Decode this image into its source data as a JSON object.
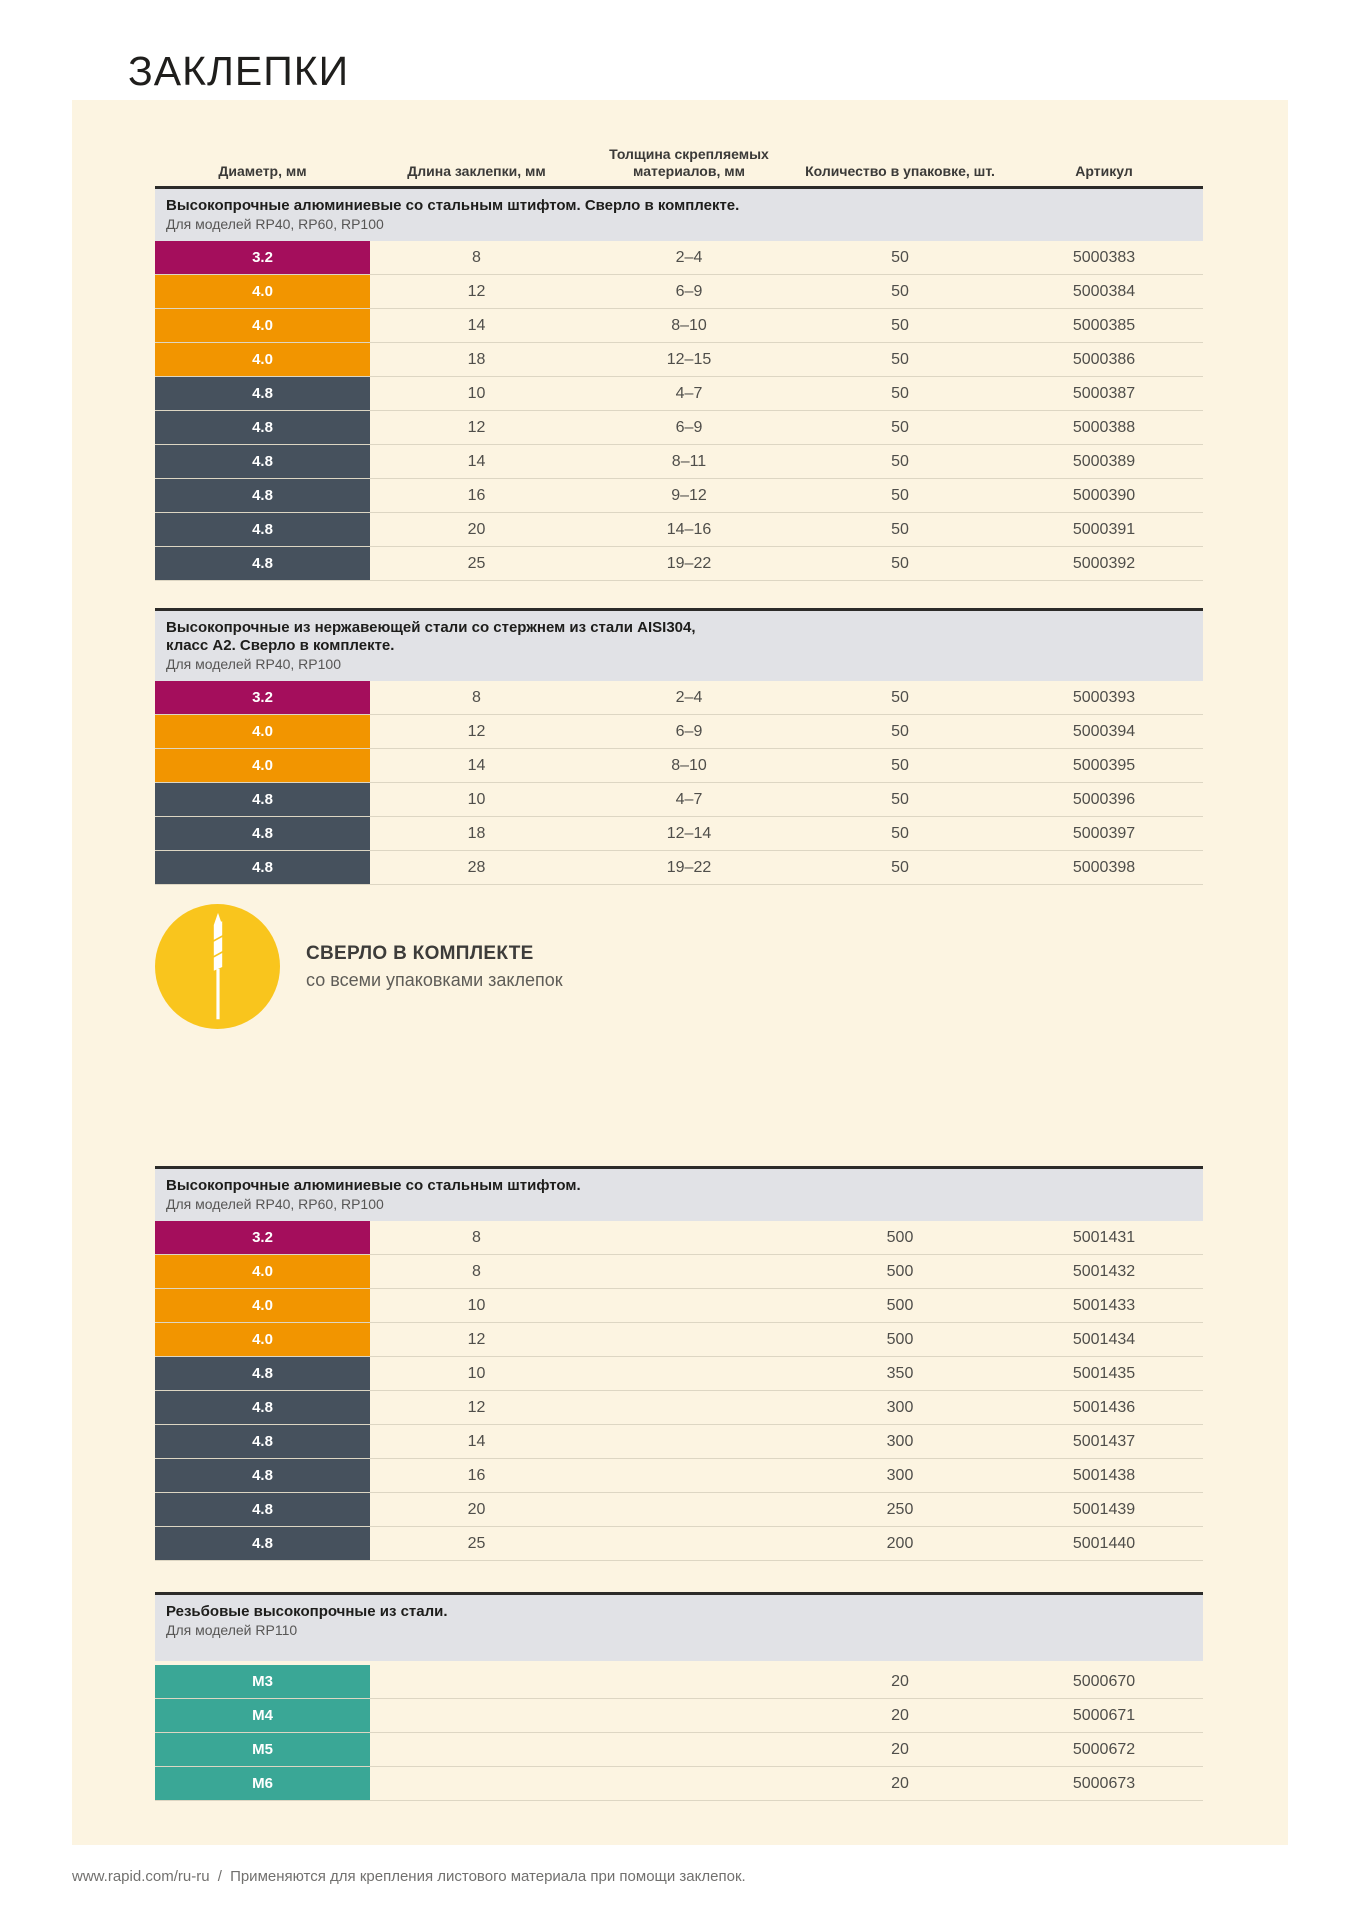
{
  "page": {
    "title": "ЗАКЛЕПКИ"
  },
  "colors": {
    "magenta": "#a40e5c",
    "orange": "#f29500",
    "slate": "#46515d",
    "teal": "#3aa796",
    "accent_yellow": "#f9c51d",
    "panel_bg": "#fcf4e1",
    "band_bg": "#e1e2e6",
    "band_border": "#2c2b29"
  },
  "columns": [
    "Диаметр, мм",
    "Длина заклепки, мм",
    "Толщина скрепляемых\nматериалов, мм",
    "Количество в упаковке, шт.",
    "Артикул"
  ],
  "row_fields": [
    "diameter",
    "length",
    "thickness",
    "qty",
    "sku",
    "color_key"
  ],
  "tables": [
    {
      "id": "t1",
      "title": "Высокопрочные алюминиевые со стальным штифтом. Сверло в комплекте.",
      "subtitle": "Для моделей RP40, RP60, RP100",
      "rows": [
        [
          "3.2",
          "8",
          "2–4",
          "50",
          "5000383",
          "magenta"
        ],
        [
          "4.0",
          "12",
          "6–9",
          "50",
          "5000384",
          "orange"
        ],
        [
          "4.0",
          "14",
          "8–10",
          "50",
          "5000385",
          "orange"
        ],
        [
          "4.0",
          "18",
          "12–15",
          "50",
          "5000386",
          "orange"
        ],
        [
          "4.8",
          "10",
          "4–7",
          "50",
          "5000387",
          "slate"
        ],
        [
          "4.8",
          "12",
          "6–9",
          "50",
          "5000388",
          "slate"
        ],
        [
          "4.8",
          "14",
          "8–11",
          "50",
          "5000389",
          "slate"
        ],
        [
          "4.8",
          "16",
          "9–12",
          "50",
          "5000390",
          "slate"
        ],
        [
          "4.8",
          "20",
          "14–16",
          "50",
          "5000391",
          "slate"
        ],
        [
          "4.8",
          "25",
          "19–22",
          "50",
          "5000392",
          "slate"
        ]
      ]
    },
    {
      "id": "t2",
      "title": "Высокопрочные из нержавеющей стали со стержнем из стали AISI304,\nкласс А2. Сверло в комплекте.",
      "subtitle": "Для моделей RP40, RP100",
      "rows": [
        [
          "3.2",
          "8",
          "2–4",
          "50",
          "5000393",
          "magenta"
        ],
        [
          "4.0",
          "12",
          "6–9",
          "50",
          "5000394",
          "orange"
        ],
        [
          "4.0",
          "14",
          "8–10",
          "50",
          "5000395",
          "orange"
        ],
        [
          "4.8",
          "10",
          "4–7",
          "50",
          "5000396",
          "slate"
        ],
        [
          "4.8",
          "18",
          "12–14",
          "50",
          "5000397",
          "slate"
        ],
        [
          "4.8",
          "28",
          "19–22",
          "50",
          "5000398",
          "slate"
        ]
      ]
    },
    {
      "id": "t3",
      "title": "Высокопрочные алюминиевые со стальным штифтом.",
      "subtitle": "Для моделей RP40, RP60, RP100",
      "rows": [
        [
          "3.2",
          "8",
          "",
          "500",
          "5001431",
          "magenta"
        ],
        [
          "4.0",
          "8",
          "",
          "500",
          "5001432",
          "orange"
        ],
        [
          "4.0",
          "10",
          "",
          "500",
          "5001433",
          "orange"
        ],
        [
          "4.0",
          "12",
          "",
          "500",
          "5001434",
          "orange"
        ],
        [
          "4.8",
          "10",
          "",
          "350",
          "5001435",
          "slate"
        ],
        [
          "4.8",
          "12",
          "",
          "300",
          "5001436",
          "slate"
        ],
        [
          "4.8",
          "14",
          "",
          "300",
          "5001437",
          "slate"
        ],
        [
          "4.8",
          "16",
          "",
          "300",
          "5001438",
          "slate"
        ],
        [
          "4.8",
          "20",
          "",
          "250",
          "5001439",
          "slate"
        ],
        [
          "4.8",
          "25",
          "",
          "200",
          "5001440",
          "slate"
        ]
      ]
    },
    {
      "id": "t4",
      "title": "Резьбовые высокопрочные из стали.",
      "subtitle": "Для моделей RP110",
      "rows": [
        [
          "M3",
          "",
          "",
          "20",
          "5000670",
          "teal"
        ],
        [
          "M4",
          "",
          "",
          "20",
          "5000671",
          "teal"
        ],
        [
          "M5",
          "",
          "",
          "20",
          "5000672",
          "teal"
        ],
        [
          "M6",
          "",
          "",
          "20",
          "5000673",
          "teal"
        ]
      ]
    }
  ],
  "badge": {
    "icon": "drill-bit",
    "title": "СВЕРЛО В КОМПЛЕКТЕ",
    "subtitle": "со всеми упаковками заклепок"
  },
  "footer": {
    "url": "www.rapid.com/ru-ru",
    "divider": "/",
    "note": "Применяются для крепления листового материала при помощи заклепок."
  }
}
